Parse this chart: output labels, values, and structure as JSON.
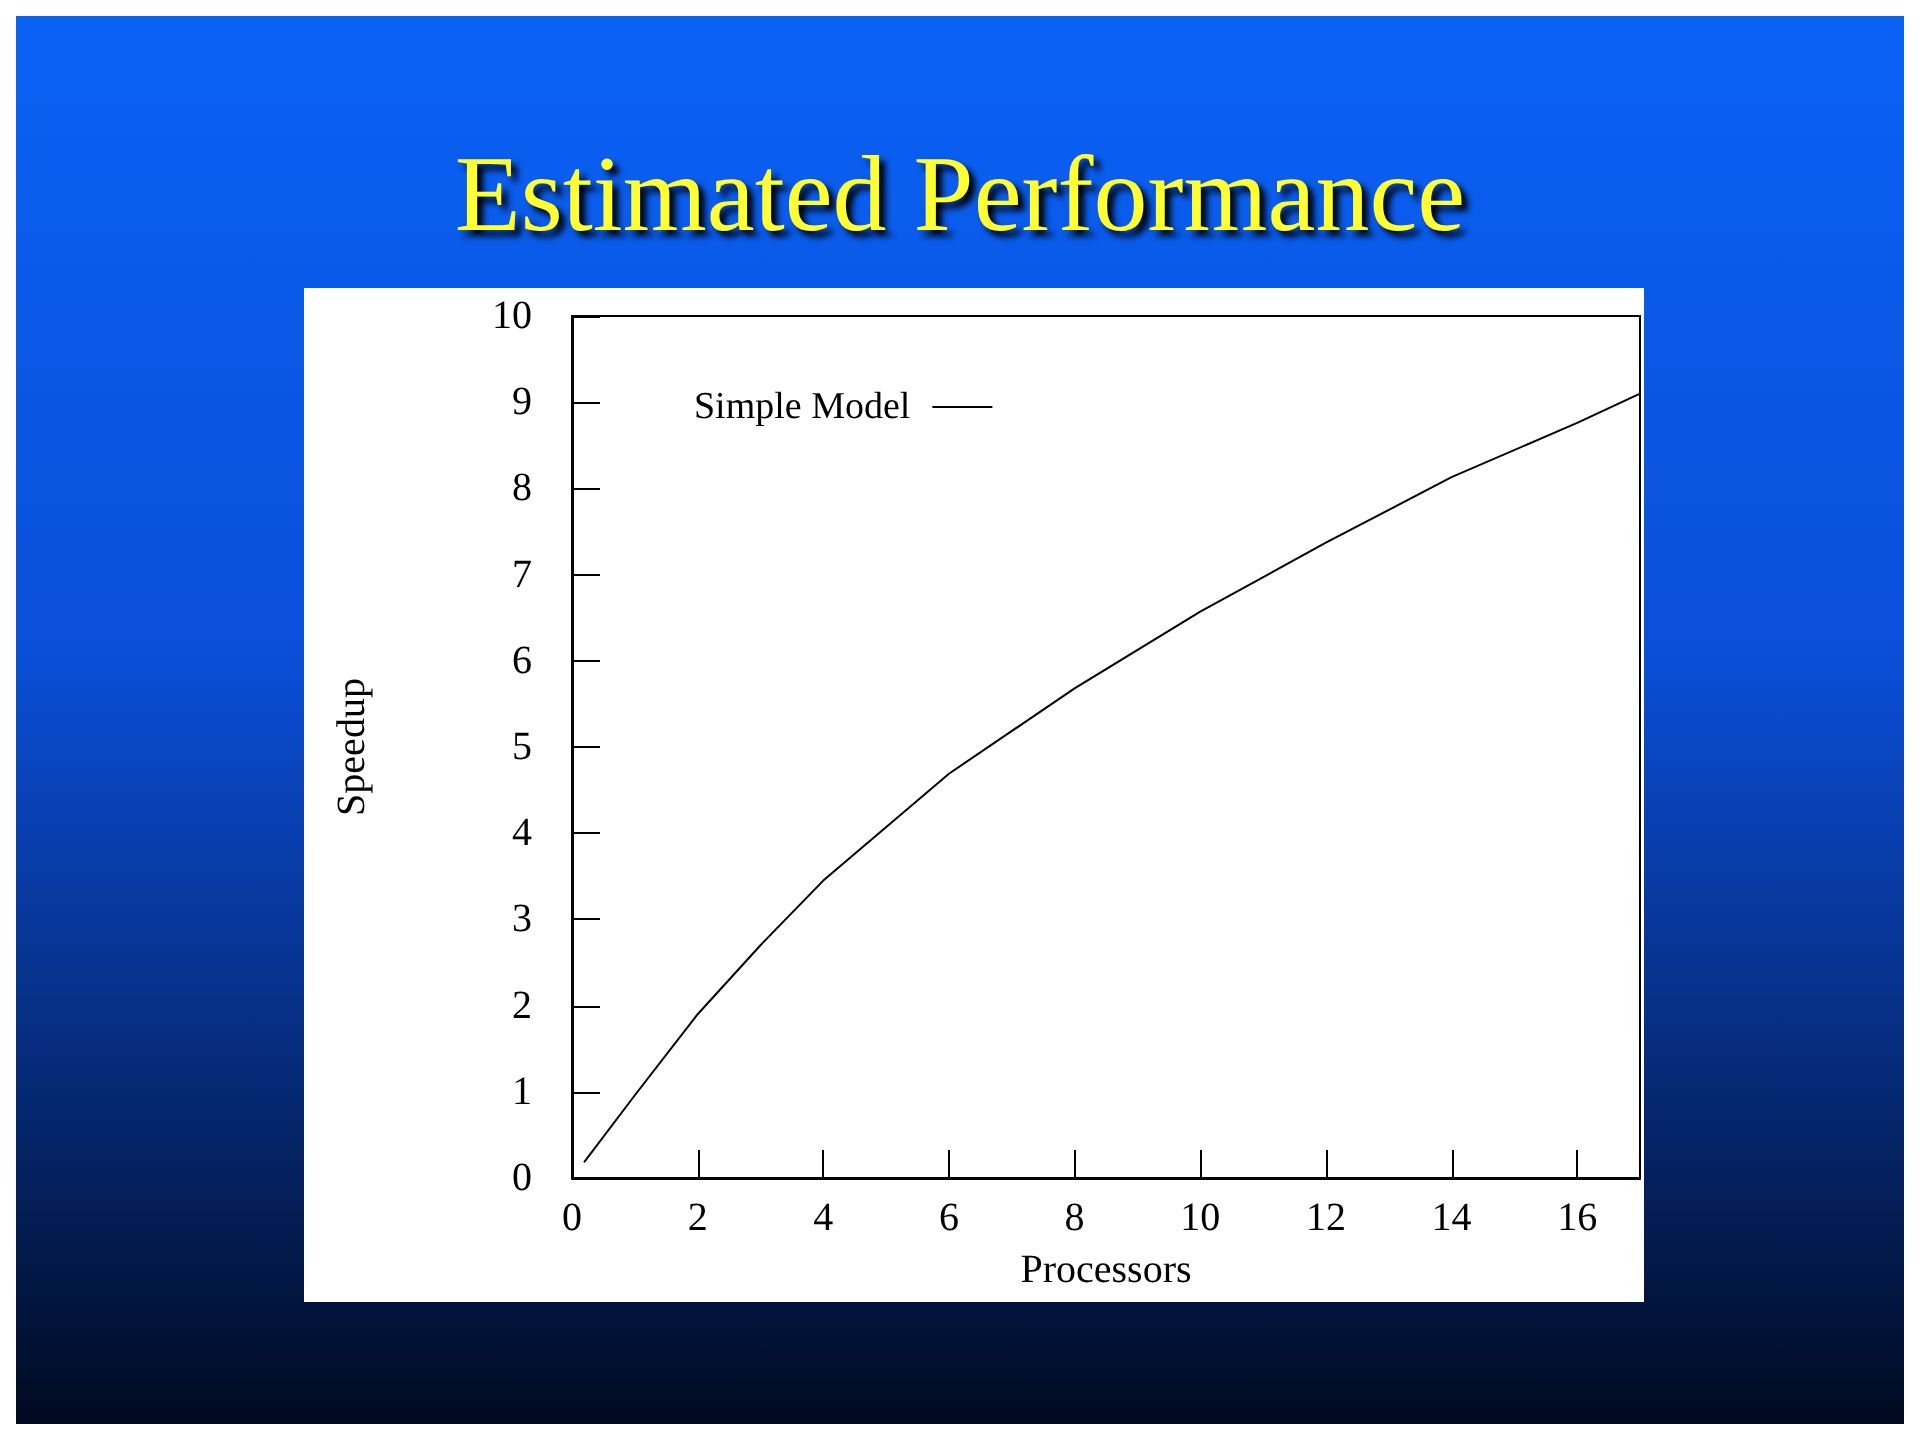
{
  "chart_data": {
    "type": "line",
    "title": "Estimated Performance",
    "xlabel": "Processors",
    "ylabel": "Speedup",
    "series": [
      {
        "name": "Simple Model",
        "color": "#000000",
        "x": [
          0.2,
          1,
          2,
          3,
          4,
          6,
          8,
          10,
          12,
          14,
          16,
          17
        ],
        "values": [
          0.19,
          0.96,
          1.9,
          2.7,
          3.45,
          4.69,
          5.68,
          6.57,
          7.37,
          8.13,
          8.76,
          9.1
        ]
      }
    ],
    "xlim": [
      0,
      17
    ],
    "xticks": [
      0,
      2,
      4,
      6,
      8,
      10,
      12,
      14,
      16
    ],
    "ylim": [
      0,
      10
    ],
    "yticks": [
      0,
      1,
      2,
      3,
      4,
      5,
      6,
      7,
      8,
      9,
      10
    ],
    "grid": false,
    "legend": "top left",
    "marker": "none",
    "line_style": "solid"
  }
}
